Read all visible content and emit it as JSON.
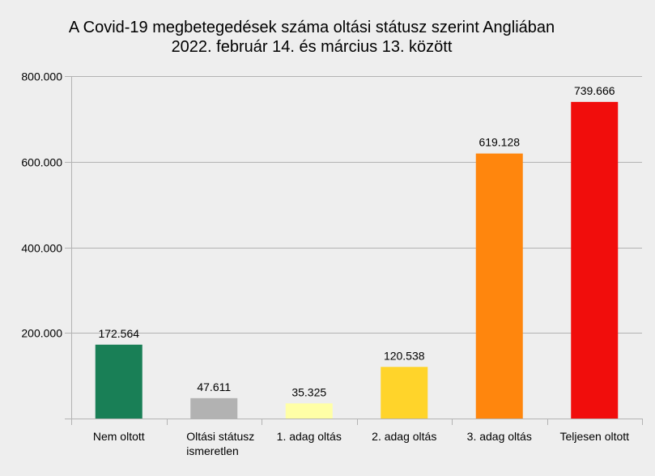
{
  "chart_data": {
    "type": "bar",
    "title": [
      "A Covid-19 megbetegedések száma oltási státusz szerint Angliában",
      "2022. február 14. és március 13. között"
    ],
    "xlabel": "",
    "ylabel": "",
    "categories": [
      [
        "Nem oltott"
      ],
      [
        "Oltási státusz",
        "ismeretlen"
      ],
      [
        "1. adag oltás"
      ],
      [
        "2. adag oltás"
      ],
      [
        "3. adag oltás"
      ],
      [
        "Teljesen oltott"
      ]
    ],
    "values": [
      172564,
      47611,
      35325,
      120538,
      619128,
      739666
    ],
    "data_labels": [
      "172.564",
      "47.611",
      "35.325",
      "120.538",
      "619.128",
      "739.666"
    ],
    "colors": [
      "#197f56",
      "#b2b2b2",
      "#ffffa6",
      "#ffd42a",
      "#ff860d",
      "#f10d0c"
    ],
    "ylim": [
      0,
      800000
    ],
    "yticks": [
      200000,
      400000,
      600000,
      800000
    ],
    "ytick_labels": [
      "200.000",
      "400.000",
      "600.000",
      "800.000"
    ],
    "grid": true,
    "legend": "none"
  }
}
